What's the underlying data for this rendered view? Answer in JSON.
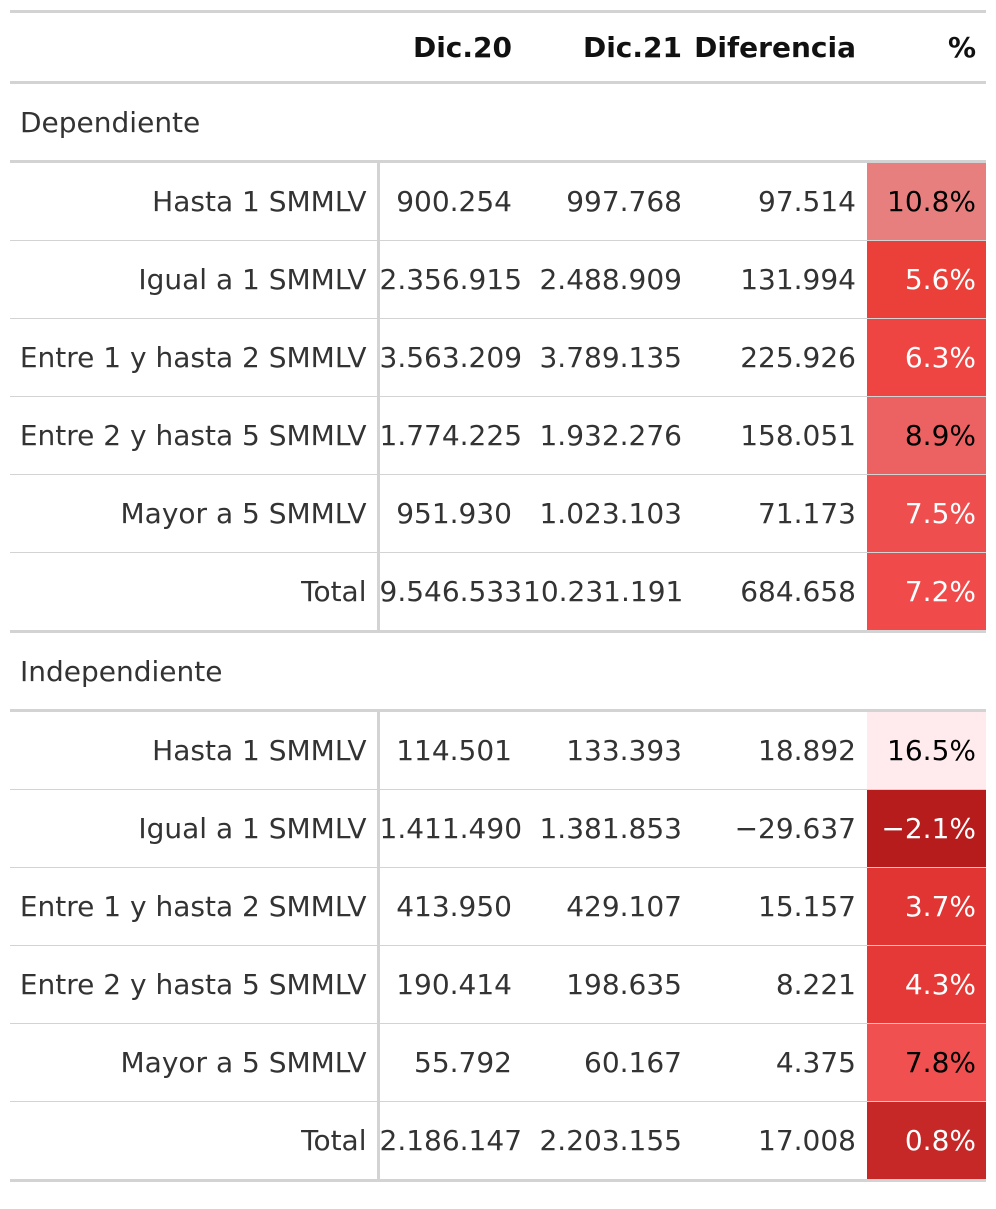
{
  "header": {
    "label": "",
    "dic20": "Dic.20",
    "dic21": "Dic.21",
    "diferencia": "Diferencia",
    "pct": "%"
  },
  "groups": [
    {
      "name": "Dependiente",
      "rows": [
        {
          "label": "Hasta 1 SMMLV",
          "dic20": "900.254",
          "dic21": "997.768",
          "dif": "97.514",
          "pct": "10.8%",
          "bg": "#e87f7f",
          "fg": "#000000"
        },
        {
          "label": "Igual a 1 SMMLV",
          "dic20": "2.356.915",
          "dic21": "2.488.909",
          "dif": "131.994",
          "pct": "5.6%",
          "bg": "#ea4039",
          "fg": "#ffffff"
        },
        {
          "label": "Entre 1 y hasta 2 SMMLV",
          "dic20": "3.563.209",
          "dic21": "3.789.135",
          "dif": "225.926",
          "pct": "6.3%",
          "bg": "#ef4542",
          "fg": "#ffffff"
        },
        {
          "label": "Entre 2 y hasta 5 SMMLV",
          "dic20": "1.774.225",
          "dic21": "1.932.276",
          "dif": "158.051",
          "pct": "8.9%",
          "bg": "#ec6262",
          "fg": "#000000"
        },
        {
          "label": "Mayor a 5 SMMLV",
          "dic20": "951.930",
          "dic21": "1.023.103",
          "dif": "71.173",
          "pct": "7.5%",
          "bg": "#ef4e4f",
          "fg": "#ffffff"
        },
        {
          "label": "Total",
          "dic20": "9.546.533",
          "dic21": "10.231.191",
          "dif": "684.658",
          "pct": "7.2%",
          "bg": "#f04b4a",
          "fg": "#ffffff"
        }
      ]
    },
    {
      "name": "Independiente",
      "rows": [
        {
          "label": "Hasta 1 SMMLV",
          "dic20": "114.501",
          "dic21": "133.393",
          "dif": "18.892",
          "pct": "16.5%",
          "bg": "#ffebee",
          "fg": "#000000"
        },
        {
          "label": "Igual a 1 SMMLV",
          "dic20": "1.411.490",
          "dic21": "1.381.853",
          "dif": "−29.637",
          "pct": "−2.1%",
          "bg": "#b71c1c",
          "fg": "#ffffff"
        },
        {
          "label": "Entre 1 y hasta 2 SMMLV",
          "dic20": "413.950",
          "dic21": "429.107",
          "dif": "15.157",
          "pct": "3.7%",
          "bg": "#e03533",
          "fg": "#ffffff"
        },
        {
          "label": "Entre 2 y hasta 5 SMMLV",
          "dic20": "190.414",
          "dic21": "198.635",
          "dif": "8.221",
          "pct": "4.3%",
          "bg": "#e53937",
          "fg": "#ffffff"
        },
        {
          "label": "Mayor a 5 SMMLV",
          "dic20": "55.792",
          "dic21": "60.167",
          "dif": "4.375",
          "pct": "7.8%",
          "bg": "#f05050",
          "fg": "#000000"
        },
        {
          "label": "Total",
          "dic20": "2.186.147",
          "dic21": "2.203.155",
          "dif": "17.008",
          "pct": "0.8%",
          "bg": "#c62828",
          "fg": "#ffffff"
        }
      ]
    }
  ]
}
